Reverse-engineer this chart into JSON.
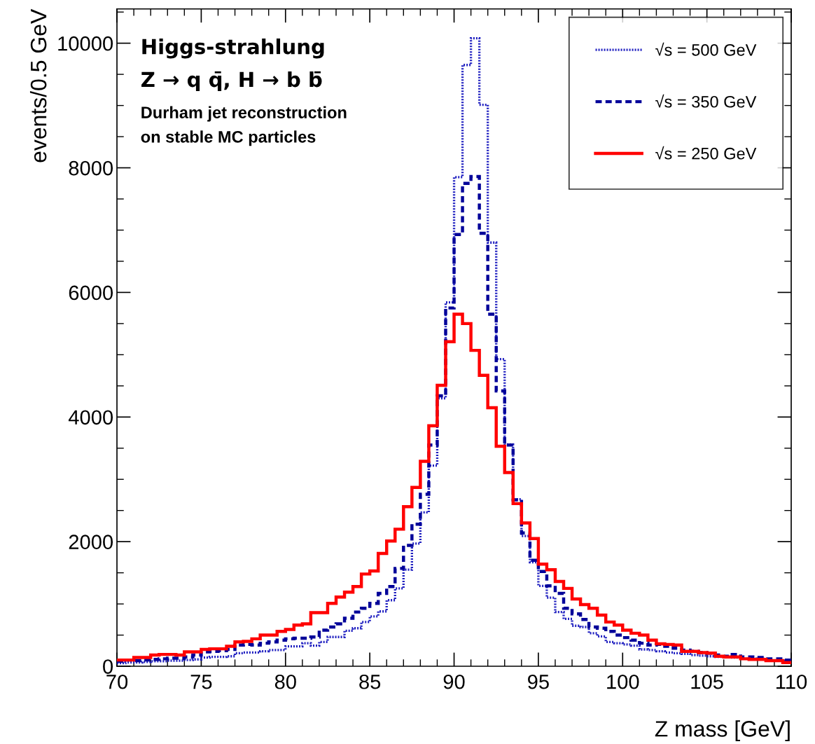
{
  "chart_data": {
    "type": "histogram",
    "xlabel": "Z mass [GeV]",
    "ylabel": "events/0.5 GeV",
    "annotations": [
      "Higgs-strahlung",
      "Z → q q̄, H → b b̄",
      "Durham jet reconstruction",
      "on stable MC particles"
    ],
    "bins": [
      70,
      70.5,
      71,
      71.5,
      72,
      72.5,
      73,
      73.5,
      74,
      74.5,
      75,
      75.5,
      76,
      76.5,
      77,
      77.5,
      78,
      78.5,
      79,
      79.5,
      80,
      80.5,
      81,
      81.5,
      82,
      82.5,
      83,
      83.5,
      84,
      84.5,
      85,
      85.5,
      86,
      86.5,
      87,
      87.5,
      88,
      88.5,
      89,
      89.5,
      90,
      90.5,
      91,
      91.5,
      92,
      92.5,
      93,
      93.5,
      94,
      94.5,
      95,
      95.5,
      96,
      96.5,
      97,
      97.5,
      98,
      98.5,
      99,
      99.5,
      100,
      100.5,
      101,
      101.5,
      102,
      102.5,
      103,
      103.5,
      104,
      104.5,
      105,
      105.5,
      106,
      106.5,
      107,
      107.5,
      108,
      108.5,
      109,
      109.5,
      110
    ],
    "series": [
      {
        "name": "√s = 500 GeV",
        "color": "#1f1fc0",
        "line_style": "dotted",
        "values": [
          50,
          60,
          60,
          70,
          80,
          80,
          90,
          90,
          100,
          110,
          140,
          150,
          150,
          160,
          210,
          220,
          220,
          240,
          260,
          260,
          320,
          320,
          370,
          330,
          390,
          470,
          470,
          570,
          610,
          710,
          800,
          880,
          1060,
          1250,
          1550,
          1970,
          2470,
          3220,
          4300,
          5840,
          7850,
          9650,
          10080,
          9010,
          6800,
          4930,
          3560,
          2680,
          2090,
          1670,
          1290,
          1100,
          870,
          760,
          650,
          630,
          530,
          480,
          390,
          370,
          350,
          330,
          270,
          260,
          240,
          220,
          210,
          200,
          180,
          170,
          160,
          150,
          150,
          140,
          120,
          120,
          120,
          90,
          90,
          90
        ]
      },
      {
        "name": "√s = 350 GeV",
        "color": "#000099",
        "line_style": "dashed",
        "values": [
          80,
          100,
          90,
          100,
          110,
          120,
          130,
          130,
          150,
          180,
          230,
          240,
          250,
          270,
          340,
          350,
          340,
          370,
          390,
          420,
          440,
          450,
          450,
          470,
          580,
          630,
          680,
          770,
          870,
          930,
          1010,
          1170,
          1280,
          1570,
          1940,
          2280,
          2760,
          3550,
          4340,
          5750,
          6930,
          7750,
          7860,
          6950,
          5650,
          4420,
          3550,
          2670,
          2140,
          1700,
          1520,
          1290,
          1170,
          930,
          840,
          750,
          630,
          610,
          560,
          500,
          460,
          420,
          370,
          340,
          350,
          320,
          290,
          260,
          240,
          220,
          210,
          180,
          160,
          190,
          150,
          150,
          140,
          120,
          120,
          100
        ]
      },
      {
        "name": "√s = 250 GeV",
        "color": "#ff0000",
        "line_style": "solid",
        "values": [
          100,
          100,
          140,
          140,
          180,
          190,
          190,
          180,
          230,
          230,
          270,
          280,
          280,
          320,
          390,
          400,
          440,
          500,
          500,
          560,
          590,
          660,
          680,
          860,
          860,
          1010,
          1110,
          1190,
          1280,
          1480,
          1530,
          1810,
          2010,
          2200,
          2560,
          2870,
          3290,
          3860,
          4510,
          5210,
          5650,
          5500,
          5070,
          4670,
          4150,
          3530,
          3110,
          2610,
          2300,
          2050,
          1640,
          1550,
          1360,
          1250,
          1080,
          990,
          930,
          820,
          710,
          660,
          580,
          530,
          500,
          420,
          360,
          350,
          340,
          240,
          240,
          220,
          210,
          160,
          150,
          150,
          120,
          110,
          110,
          90,
          90,
          60
        ]
      }
    ],
    "xlim": [
      70,
      110
    ],
    "xticks": [
      70,
      75,
      80,
      85,
      90,
      95,
      100,
      105,
      110
    ],
    "ylim": [
      0,
      10550
    ],
    "yticks": [
      0,
      2000,
      4000,
      6000,
      8000,
      10000
    ],
    "grid": false,
    "legend": "top right"
  }
}
